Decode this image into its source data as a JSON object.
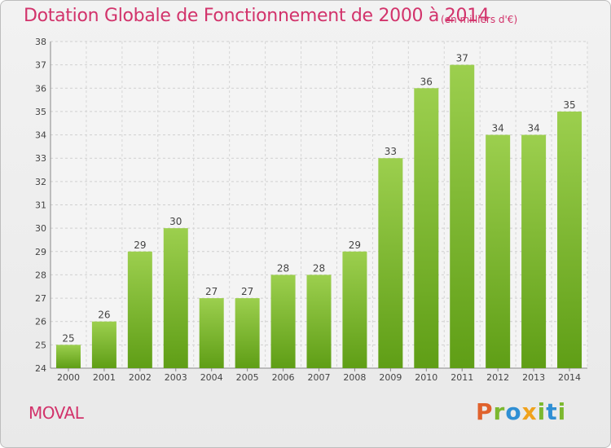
{
  "header": {
    "title": "Dotation Globale de Fonctionnement de 2000 à 2014",
    "unit": "(en milliers d'€)"
  },
  "footer": {
    "commune": "MOVAL",
    "logo": "Proxiti"
  },
  "colors": {
    "title": "#d2336b",
    "bar_top": "#9ccf4e",
    "bar_bottom": "#5f9e16",
    "logo_p": "#e0622d",
    "logo_r": "#7cb82f",
    "logo_o": "#2f8fd4",
    "logo_x": "#f0a21c",
    "logo_i": "#7cb82f",
    "logo_t": "#2f8fd4",
    "logo_i2": "#7cb82f"
  },
  "chart_data": {
    "type": "bar",
    "categories": [
      "2000",
      "2001",
      "2002",
      "2003",
      "2004",
      "2005",
      "2006",
      "2007",
      "2008",
      "2009",
      "2010",
      "2011",
      "2012",
      "2013",
      "2014"
    ],
    "values": [
      25,
      26,
      29,
      30,
      27,
      27,
      28,
      28,
      29,
      33,
      36,
      37,
      34,
      34,
      35
    ],
    "ylim": [
      24,
      38
    ],
    "yticks": [
      24,
      25,
      26,
      27,
      28,
      29,
      30,
      31,
      32,
      33,
      34,
      35,
      36,
      37,
      38
    ],
    "grid": true,
    "data_labels": true
  }
}
